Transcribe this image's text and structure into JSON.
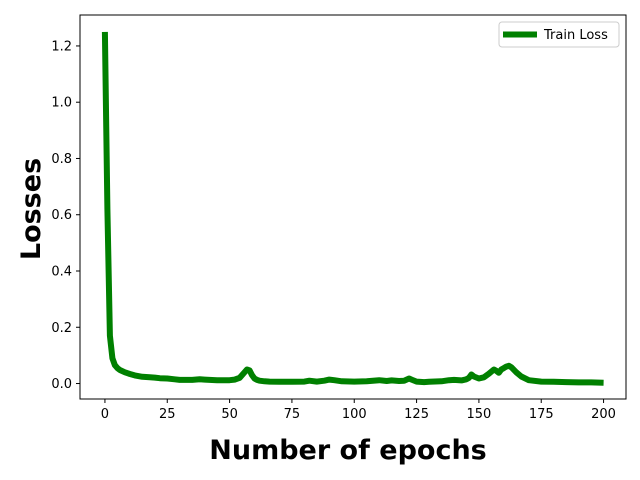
{
  "chart_data": {
    "type": "line",
    "xlabel": "Number of epochs",
    "ylabel": "Losses",
    "xlim": [
      -10,
      209
    ],
    "ylim": [
      -0.055,
      1.31
    ],
    "xticks": [
      0,
      25,
      50,
      75,
      100,
      125,
      150,
      175,
      200
    ],
    "yticks": [
      0.0,
      0.2,
      0.4,
      0.6,
      0.8,
      1.0,
      1.2
    ],
    "ytick_labels": [
      "0.0",
      "0.2",
      "0.4",
      "0.6",
      "0.8",
      "1.0",
      "1.2"
    ],
    "grid": false,
    "legend": {
      "position": "top-right"
    },
    "series": [
      {
        "name": "Train Loss",
        "color": "#008000",
        "x": [
          0,
          1,
          2,
          3,
          4,
          5,
          6,
          8,
          10,
          12,
          15,
          18,
          20,
          22,
          25,
          28,
          30,
          32,
          35,
          38,
          40,
          42,
          45,
          48,
          50,
          52,
          54,
          56,
          57,
          58,
          59,
          60,
          61,
          62,
          64,
          66,
          70,
          75,
          80,
          82,
          85,
          88,
          90,
          92,
          95,
          100,
          105,
          110,
          113,
          115,
          118,
          120,
          122,
          123,
          125,
          128,
          130,
          135,
          138,
          140,
          143,
          145,
          146,
          147,
          148,
          150,
          152,
          154,
          156,
          157,
          158,
          159,
          160,
          161,
          162,
          163,
          165,
          167,
          170,
          175,
          180,
          185,
          190,
          195,
          200
        ],
        "values": [
          1.25,
          0.62,
          0.17,
          0.09,
          0.065,
          0.055,
          0.048,
          0.04,
          0.034,
          0.029,
          0.024,
          0.022,
          0.021,
          0.019,
          0.018,
          0.015,
          0.013,
          0.013,
          0.013,
          0.015,
          0.014,
          0.013,
          0.012,
          0.012,
          0.012,
          0.014,
          0.02,
          0.04,
          0.05,
          0.047,
          0.03,
          0.018,
          0.013,
          0.01,
          0.008,
          0.007,
          0.006,
          0.006,
          0.007,
          0.01,
          0.007,
          0.01,
          0.014,
          0.012,
          0.008,
          0.007,
          0.008,
          0.012,
          0.009,
          0.011,
          0.009,
          0.01,
          0.018,
          0.014,
          0.007,
          0.005,
          0.006,
          0.008,
          0.012,
          0.013,
          0.011,
          0.015,
          0.02,
          0.032,
          0.025,
          0.018,
          0.022,
          0.035,
          0.05,
          0.045,
          0.038,
          0.05,
          0.055,
          0.06,
          0.063,
          0.058,
          0.04,
          0.025,
          0.012,
          0.007,
          0.006,
          0.005,
          0.004,
          0.004,
          0.003
        ]
      }
    ]
  }
}
